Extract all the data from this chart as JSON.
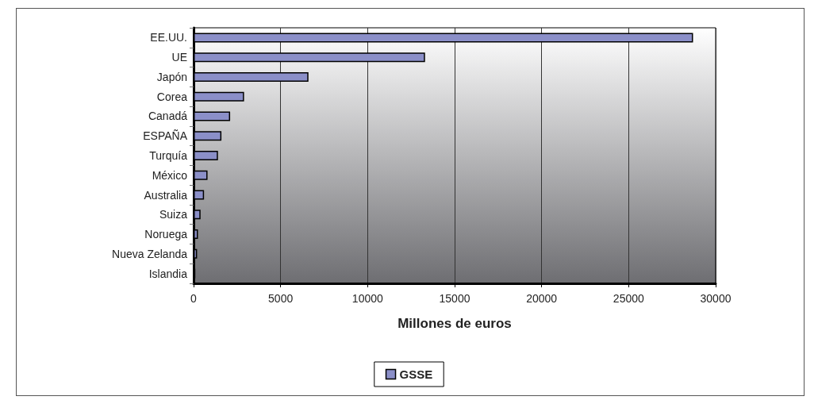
{
  "chart_data": {
    "type": "bar",
    "orientation": "horizontal",
    "xlabel": "Millones de euros",
    "categories": [
      "EE.UU.",
      "UE",
      "Japón",
      "Corea",
      "Canadá",
      "ESPAÑA",
      "Turquía",
      "México",
      "Australia",
      "Suiza",
      "Noruega",
      "Nueva Zelanda",
      "Islandia"
    ],
    "series": [
      {
        "name": "GSSE",
        "color": "#8b8fc8",
        "values": [
          28700,
          13300,
          6600,
          2900,
          2100,
          1600,
          1400,
          800,
          600,
          400,
          250,
          200,
          100
        ]
      }
    ],
    "xlim": [
      0,
      30000
    ],
    "xticks": [
      0,
      5000,
      10000,
      15000,
      20000,
      25000,
      30000
    ],
    "grid": "x",
    "legend": "bottom"
  }
}
